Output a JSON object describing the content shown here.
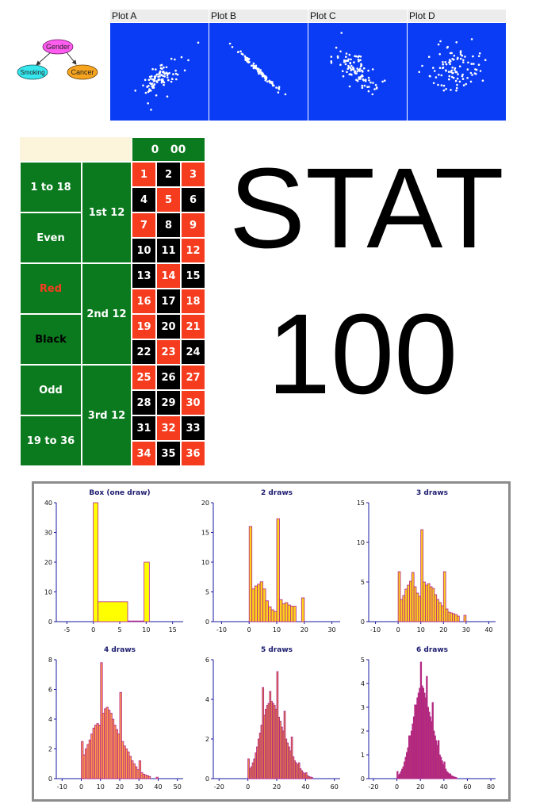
{
  "dag": {
    "nodes": [
      {
        "id": "gender",
        "label": "Gender",
        "color": "#ff5cf0"
      },
      {
        "id": "smoking",
        "label": "Smoking",
        "color": "#36e7ee"
      },
      {
        "id": "cancer",
        "label": "Cancer",
        "color": "#f7a51e"
      }
    ]
  },
  "scatter_plots": [
    {
      "title": "Plot A",
      "relationship": "moderate positive"
    },
    {
      "title": "Plot B",
      "relationship": "strong negative"
    },
    {
      "title": "Plot C",
      "relationship": "moderate negative"
    },
    {
      "title": "Plot D",
      "relationship": "weak"
    }
  ],
  "roulette": {
    "zero_label": "0   00",
    "outside_bets": [
      "1 to 18",
      "Even",
      "Red",
      "Black",
      "Odd",
      "19 to 36"
    ],
    "dozens": [
      "1st 12",
      "2nd 12",
      "3rd 12"
    ],
    "numbers": [
      {
        "n": "1",
        "c": "red"
      },
      {
        "n": "2",
        "c": "black"
      },
      {
        "n": "3",
        "c": "red"
      },
      {
        "n": "4",
        "c": "black"
      },
      {
        "n": "5",
        "c": "red"
      },
      {
        "n": "6",
        "c": "black"
      },
      {
        "n": "7",
        "c": "red"
      },
      {
        "n": "8",
        "c": "black"
      },
      {
        "n": "9",
        "c": "red"
      },
      {
        "n": "10",
        "c": "black"
      },
      {
        "n": "11",
        "c": "black"
      },
      {
        "n": "12",
        "c": "red"
      },
      {
        "n": "13",
        "c": "black"
      },
      {
        "n": "14",
        "c": "red"
      },
      {
        "n": "15",
        "c": "black"
      },
      {
        "n": "16",
        "c": "red"
      },
      {
        "n": "17",
        "c": "black"
      },
      {
        "n": "18",
        "c": "red"
      },
      {
        "n": "19",
        "c": "red"
      },
      {
        "n": "20",
        "c": "black"
      },
      {
        "n": "21",
        "c": "red"
      },
      {
        "n": "22",
        "c": "black"
      },
      {
        "n": "23",
        "c": "red"
      },
      {
        "n": "24",
        "c": "black"
      },
      {
        "n": "25",
        "c": "red"
      },
      {
        "n": "26",
        "c": "black"
      },
      {
        "n": "27",
        "c": "red"
      },
      {
        "n": "28",
        "c": "black"
      },
      {
        "n": "29",
        "c": "black"
      },
      {
        "n": "30",
        "c": "red"
      },
      {
        "n": "31",
        "c": "black"
      },
      {
        "n": "32",
        "c": "red"
      },
      {
        "n": "33",
        "c": "black"
      },
      {
        "n": "34",
        "c": "red"
      },
      {
        "n": "35",
        "c": "black"
      },
      {
        "n": "36",
        "c": "red"
      }
    ],
    "colors": {
      "green": "#0b7a1e",
      "red": "#f63c1e",
      "black": "#000000",
      "header": "#fdf4dc"
    }
  },
  "heading": {
    "line1": "STAT",
    "line2": "100"
  },
  "chart_data": [
    {
      "type": "bar",
      "title": "Box (one draw)",
      "xlim": [
        -7,
        17
      ],
      "ylim": [
        0,
        40
      ],
      "xticks": [
        -5,
        0,
        5,
        10,
        15
      ],
      "yticks": [
        0,
        10,
        20,
        30,
        40
      ],
      "bins": [
        {
          "x0": 0,
          "x1": 0.9,
          "v": 40
        },
        {
          "x0": 0.9,
          "x1": 6.5,
          "v": 6.7
        },
        {
          "x0": 9.6,
          "x1": 10.6,
          "v": 20
        }
      ],
      "fill": "#ffff00"
    },
    {
      "type": "bar",
      "title": "2 draws",
      "xlim": [
        -13,
        33
      ],
      "ylim": [
        0,
        20
      ],
      "xticks": [
        -10,
        0,
        10,
        20,
        30
      ],
      "yticks": [
        0,
        5,
        10,
        15,
        20
      ],
      "bins": [
        {
          "x0": 0,
          "x1": 1,
          "v": 16
        },
        {
          "x0": 1,
          "x1": 2,
          "v": 5.5
        },
        {
          "x0": 2,
          "x1": 3,
          "v": 6
        },
        {
          "x0": 3,
          "x1": 4,
          "v": 6.3
        },
        {
          "x0": 4,
          "x1": 5,
          "v": 6.7
        },
        {
          "x0": 5,
          "x1": 6,
          "v": 5.5
        },
        {
          "x0": 6,
          "x1": 7,
          "v": 3.5
        },
        {
          "x0": 7,
          "x1": 8,
          "v": 2.5
        },
        {
          "x0": 8,
          "x1": 9,
          "v": 2
        },
        {
          "x0": 9,
          "x1": 10,
          "v": 1.7
        },
        {
          "x0": 10,
          "x1": 11,
          "v": 17.3
        },
        {
          "x0": 11,
          "x1": 12,
          "v": 3.7
        },
        {
          "x0": 12,
          "x1": 13,
          "v": 3
        },
        {
          "x0": 13,
          "x1": 14,
          "v": 3.2
        },
        {
          "x0": 14,
          "x1": 15,
          "v": 2.8
        },
        {
          "x0": 15,
          "x1": 16,
          "v": 2.6
        },
        {
          "x0": 16,
          "x1": 17,
          "v": 2.6
        },
        {
          "x0": 19,
          "x1": 20,
          "v": 4
        }
      ],
      "fill": "#ffd11a"
    },
    {
      "type": "bar",
      "title": "3 draws",
      "xlim": [
        -13,
        43
      ],
      "ylim": [
        0,
        15
      ],
      "xticks": [
        -10,
        0,
        10,
        20,
        30,
        40
      ],
      "yticks": [
        0,
        5,
        10,
        15
      ],
      "bins": [
        {
          "x0": 0,
          "x1": 1,
          "v": 6.3
        },
        {
          "x0": 1,
          "x1": 2,
          "v": 2.8
        },
        {
          "x0": 2,
          "x1": 3,
          "v": 3.3
        },
        {
          "x0": 3,
          "x1": 4,
          "v": 4.1
        },
        {
          "x0": 4,
          "x1": 5,
          "v": 4.6
        },
        {
          "x0": 5,
          "x1": 6,
          "v": 5.1
        },
        {
          "x0": 6,
          "x1": 7,
          "v": 6.2
        },
        {
          "x0": 7,
          "x1": 8,
          "v": 4.4
        },
        {
          "x0": 8,
          "x1": 9,
          "v": 3.6
        },
        {
          "x0": 9,
          "x1": 10,
          "v": 3.2
        },
        {
          "x0": 10,
          "x1": 11,
          "v": 11.6
        },
        {
          "x0": 11,
          "x1": 12,
          "v": 5
        },
        {
          "x0": 12,
          "x1": 13,
          "v": 4.6
        },
        {
          "x0": 13,
          "x1": 14,
          "v": 4.8
        },
        {
          "x0": 14,
          "x1": 15,
          "v": 4.4
        },
        {
          "x0": 15,
          "x1": 16,
          "v": 4.2
        },
        {
          "x0": 16,
          "x1": 17,
          "v": 3.4
        },
        {
          "x0": 17,
          "x1": 18,
          "v": 2.8
        },
        {
          "x0": 18,
          "x1": 19,
          "v": 2.4
        },
        {
          "x0": 19,
          "x1": 20,
          "v": 2
        },
        {
          "x0": 20,
          "x1": 21,
          "v": 6.3
        },
        {
          "x0": 21,
          "x1": 22,
          "v": 1.6
        },
        {
          "x0": 22,
          "x1": 23,
          "v": 1.2
        },
        {
          "x0": 23,
          "x1": 24,
          "v": 1.1
        },
        {
          "x0": 24,
          "x1": 25,
          "v": 1
        },
        {
          "x0": 25,
          "x1": 26,
          "v": 0.9
        },
        {
          "x0": 26,
          "x1": 27,
          "v": 0.7
        },
        {
          "x0": 29,
          "x1": 30,
          "v": 0.8
        }
      ],
      "fill": "#ffd11a"
    },
    {
      "type": "bar",
      "title": "4 draws",
      "xlim": [
        -13,
        53
      ],
      "ylim": [
        0,
        8
      ],
      "xticks": [
        -10,
        0,
        10,
        20,
        30,
        40,
        50
      ],
      "yticks": [
        0,
        2,
        4,
        6,
        8
      ],
      "bins": [
        {
          "x0": 0,
          "x1": 1,
          "v": 2.5
        },
        {
          "x0": 1,
          "x1": 2,
          "v": 1.6
        },
        {
          "x0": 2,
          "x1": 3,
          "v": 2
        },
        {
          "x0": 3,
          "x1": 4,
          "v": 2.3
        },
        {
          "x0": 4,
          "x1": 5,
          "v": 2.6
        },
        {
          "x0": 5,
          "x1": 6,
          "v": 3
        },
        {
          "x0": 6,
          "x1": 7,
          "v": 3.4
        },
        {
          "x0": 7,
          "x1": 8,
          "v": 3.6
        },
        {
          "x0": 8,
          "x1": 9,
          "v": 3.7
        },
        {
          "x0": 9,
          "x1": 10,
          "v": 3.6
        },
        {
          "x0": 10,
          "x1": 11,
          "v": 7.8
        },
        {
          "x0": 11,
          "x1": 12,
          "v": 4.4
        },
        {
          "x0": 12,
          "x1": 13,
          "v": 4.7
        },
        {
          "x0": 13,
          "x1": 14,
          "v": 4.8
        },
        {
          "x0": 14,
          "x1": 15,
          "v": 4.6
        },
        {
          "x0": 15,
          "x1": 16,
          "v": 4.4
        },
        {
          "x0": 16,
          "x1": 17,
          "v": 4
        },
        {
          "x0": 17,
          "x1": 18,
          "v": 3.6
        },
        {
          "x0": 18,
          "x1": 19,
          "v": 3.3
        },
        {
          "x0": 19,
          "x1": 20,
          "v": 3
        },
        {
          "x0": 20,
          "x1": 21,
          "v": 5.8
        },
        {
          "x0": 21,
          "x1": 22,
          "v": 2.5
        },
        {
          "x0": 22,
          "x1": 23,
          "v": 2.2
        },
        {
          "x0": 23,
          "x1": 24,
          "v": 2
        },
        {
          "x0": 24,
          "x1": 25,
          "v": 1.8
        },
        {
          "x0": 25,
          "x1": 26,
          "v": 1.5
        },
        {
          "x0": 26,
          "x1": 27,
          "v": 1.2
        },
        {
          "x0": 27,
          "x1": 28,
          "v": 1
        },
        {
          "x0": 28,
          "x1": 29,
          "v": 0.8
        },
        {
          "x0": 29,
          "x1": 30,
          "v": 0.6
        },
        {
          "x0": 30,
          "x1": 31,
          "v": 1.2
        },
        {
          "x0": 31,
          "x1": 32,
          "v": 0.4
        },
        {
          "x0": 32,
          "x1": 33,
          "v": 0.3
        },
        {
          "x0": 33,
          "x1": 34,
          "v": 0.25
        },
        {
          "x0": 34,
          "x1": 35,
          "v": 0.2
        },
        {
          "x0": 35,
          "x1": 36,
          "v": 0.15
        },
        {
          "x0": 39,
          "x1": 40,
          "v": 0.1
        }
      ],
      "fill": "#ff9c4a"
    },
    {
      "type": "bar",
      "title": "5 draws",
      "xlim": [
        -24,
        64
      ],
      "ylim": [
        0,
        6
      ],
      "xticks": [
        -20,
        0,
        20,
        40,
        60
      ],
      "yticks": [
        0,
        2,
        4,
        6
      ],
      "bins": [
        {
          "x0": 0,
          "x1": 1,
          "v": 1
        },
        {
          "x0": 1,
          "x1": 2,
          "v": 0.5
        },
        {
          "x0": 2,
          "x1": 3,
          "v": 0.6
        },
        {
          "x0": 3,
          "x1": 4,
          "v": 0.8
        },
        {
          "x0": 4,
          "x1": 5,
          "v": 1
        },
        {
          "x0": 5,
          "x1": 6,
          "v": 1.3
        },
        {
          "x0": 6,
          "x1": 7,
          "v": 1.6
        },
        {
          "x0": 7,
          "x1": 8,
          "v": 2
        },
        {
          "x0": 8,
          "x1": 9,
          "v": 2.3
        },
        {
          "x0": 9,
          "x1": 10,
          "v": 2.7
        },
        {
          "x0": 10,
          "x1": 11,
          "v": 4.6
        },
        {
          "x0": 11,
          "x1": 12,
          "v": 3.2
        },
        {
          "x0": 12,
          "x1": 13,
          "v": 3.5
        },
        {
          "x0": 13,
          "x1": 14,
          "v": 3.7
        },
        {
          "x0": 14,
          "x1": 15,
          "v": 3.8
        },
        {
          "x0": 15,
          "x1": 16,
          "v": 4.4
        },
        {
          "x0": 16,
          "x1": 17,
          "v": 3.9
        },
        {
          "x0": 17,
          "x1": 18,
          "v": 3.8
        },
        {
          "x0": 18,
          "x1": 19,
          "v": 3.7
        },
        {
          "x0": 19,
          "x1": 20,
          "v": 3.5
        },
        {
          "x0": 20,
          "x1": 21,
          "v": 5.4
        },
        {
          "x0": 21,
          "x1": 22,
          "v": 3.1
        },
        {
          "x0": 22,
          "x1": 23,
          "v": 2.9
        },
        {
          "x0": 23,
          "x1": 24,
          "v": 2.6
        },
        {
          "x0": 24,
          "x1": 25,
          "v": 2.4
        },
        {
          "x0": 25,
          "x1": 26,
          "v": 3.4
        },
        {
          "x0": 26,
          "x1": 27,
          "v": 2
        },
        {
          "x0": 27,
          "x1": 28,
          "v": 1.8
        },
        {
          "x0": 28,
          "x1": 29,
          "v": 1.6
        },
        {
          "x0": 29,
          "x1": 30,
          "v": 1.4
        },
        {
          "x0": 30,
          "x1": 31,
          "v": 2.1
        },
        {
          "x0": 31,
          "x1": 32,
          "v": 1.1
        },
        {
          "x0": 32,
          "x1": 33,
          "v": 0.9
        },
        {
          "x0": 33,
          "x1": 34,
          "v": 0.8
        },
        {
          "x0": 34,
          "x1": 35,
          "v": 0.7
        },
        {
          "x0": 35,
          "x1": 36,
          "v": 0.8
        },
        {
          "x0": 36,
          "x1": 37,
          "v": 0.5
        },
        {
          "x0": 37,
          "x1": 38,
          "v": 0.4
        },
        {
          "x0": 38,
          "x1": 39,
          "v": 0.3
        },
        {
          "x0": 39,
          "x1": 40,
          "v": 0.25
        },
        {
          "x0": 40,
          "x1": 41,
          "v": 0.3
        },
        {
          "x0": 41,
          "x1": 42,
          "v": 0.15
        },
        {
          "x0": 42,
          "x1": 43,
          "v": 0.1
        },
        {
          "x0": 43,
          "x1": 44,
          "v": 0.08
        },
        {
          "x0": 44,
          "x1": 45,
          "v": 0.06
        }
      ],
      "fill": "#e68a3c"
    },
    {
      "type": "bar",
      "title": "6 draws",
      "xlim": [
        -24,
        84
      ],
      "ylim": [
        0,
        5
      ],
      "xticks": [
        -20,
        0,
        20,
        40,
        60,
        80
      ],
      "yticks": [
        0,
        1,
        2,
        3,
        4,
        5
      ],
      "bins": [
        {
          "x0": 0,
          "x1": 1,
          "v": 0.3
        },
        {
          "x0": 1,
          "x1": 2,
          "v": 0.15
        },
        {
          "x0": 2,
          "x1": 3,
          "v": 0.2
        },
        {
          "x0": 3,
          "x1": 4,
          "v": 0.3
        },
        {
          "x0": 4,
          "x1": 5,
          "v": 0.4
        },
        {
          "x0": 5,
          "x1": 6,
          "v": 0.5
        },
        {
          "x0": 6,
          "x1": 7,
          "v": 0.7
        },
        {
          "x0": 7,
          "x1": 8,
          "v": 0.9
        },
        {
          "x0": 8,
          "x1": 9,
          "v": 1.1
        },
        {
          "x0": 9,
          "x1": 10,
          "v": 1.3
        },
        {
          "x0": 10,
          "x1": 11,
          "v": 1.8
        },
        {
          "x0": 11,
          "x1": 12,
          "v": 1.8
        },
        {
          "x0": 12,
          "x1": 13,
          "v": 2
        },
        {
          "x0": 13,
          "x1": 14,
          "v": 2.3
        },
        {
          "x0": 14,
          "x1": 15,
          "v": 2.6
        },
        {
          "x0": 15,
          "x1": 16,
          "v": 3.1
        },
        {
          "x0": 16,
          "x1": 17,
          "v": 3.1
        },
        {
          "x0": 17,
          "x1": 18,
          "v": 3.4
        },
        {
          "x0": 18,
          "x1": 19,
          "v": 3.6
        },
        {
          "x0": 19,
          "x1": 20,
          "v": 3.8
        },
        {
          "x0": 20,
          "x1": 21,
          "v": 4.9
        },
        {
          "x0": 21,
          "x1": 22,
          "v": 3.9
        },
        {
          "x0": 22,
          "x1": 23,
          "v": 3.8
        },
        {
          "x0": 23,
          "x1": 24,
          "v": 3.6
        },
        {
          "x0": 24,
          "x1": 25,
          "v": 3.4
        },
        {
          "x0": 25,
          "x1": 26,
          "v": 4.3
        },
        {
          "x0": 26,
          "x1": 27,
          "v": 3
        },
        {
          "x0": 27,
          "x1": 28,
          "v": 2.8
        },
        {
          "x0": 28,
          "x1": 29,
          "v": 2.6
        },
        {
          "x0": 29,
          "x1": 30,
          "v": 2.4
        },
        {
          "x0": 30,
          "x1": 31,
          "v": 3.2
        },
        {
          "x0": 31,
          "x1": 32,
          "v": 2
        },
        {
          "x0": 32,
          "x1": 33,
          "v": 1.8
        },
        {
          "x0": 33,
          "x1": 34,
          "v": 1.6
        },
        {
          "x0": 34,
          "x1": 35,
          "v": 1.4
        },
        {
          "x0": 35,
          "x1": 36,
          "v": 1.6
        },
        {
          "x0": 36,
          "x1": 37,
          "v": 1
        },
        {
          "x0": 37,
          "x1": 38,
          "v": 0.9
        },
        {
          "x0": 38,
          "x1": 39,
          "v": 0.75
        },
        {
          "x0": 39,
          "x1": 40,
          "v": 0.6
        },
        {
          "x0": 40,
          "x1": 41,
          "v": 0.7
        },
        {
          "x0": 41,
          "x1": 42,
          "v": 0.4
        },
        {
          "x0": 42,
          "x1": 43,
          "v": 0.3
        },
        {
          "x0": 43,
          "x1": 44,
          "v": 0.25
        },
        {
          "x0": 44,
          "x1": 45,
          "v": 0.2
        },
        {
          "x0": 45,
          "x1": 46,
          "v": 0.2
        },
        {
          "x0": 46,
          "x1": 47,
          "v": 0.12
        },
        {
          "x0": 47,
          "x1": 48,
          "v": 0.1
        },
        {
          "x0": 48,
          "x1": 49,
          "v": 0.08
        },
        {
          "x0": 49,
          "x1": 50,
          "v": 0.06
        },
        {
          "x0": 50,
          "x1": 51,
          "v": 0.05
        }
      ],
      "fill": "#b83a6e"
    }
  ]
}
